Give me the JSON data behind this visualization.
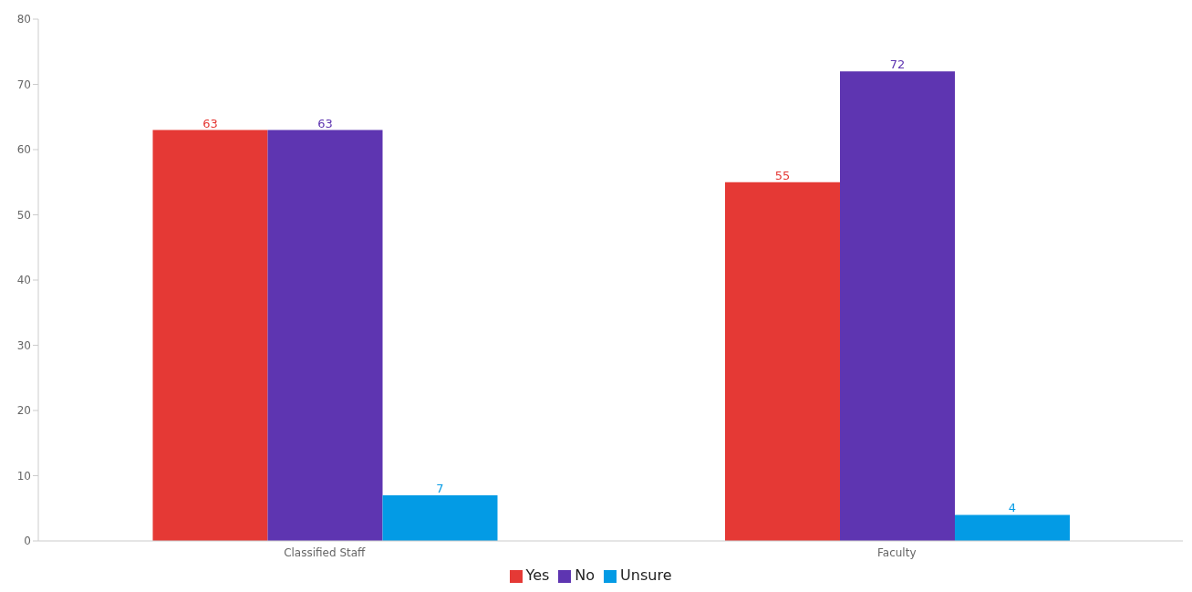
{
  "chart_data": {
    "type": "bar",
    "categories": [
      "Classified Staff",
      "Faculty"
    ],
    "series": [
      {
        "name": "Yes",
        "color": "#e53935",
        "values": [
          63,
          55
        ]
      },
      {
        "name": "No",
        "color": "#5e35b1",
        "values": [
          63,
          72
        ]
      },
      {
        "name": "Unsure",
        "color": "#039be5",
        "values": [
          7,
          4
        ]
      }
    ],
    "ylim": [
      0,
      80
    ],
    "yticks": [
      0,
      10,
      20,
      30,
      40,
      50,
      60,
      70,
      80
    ],
    "grid": false,
    "legend": "bottom",
    "data_labels": true
  }
}
